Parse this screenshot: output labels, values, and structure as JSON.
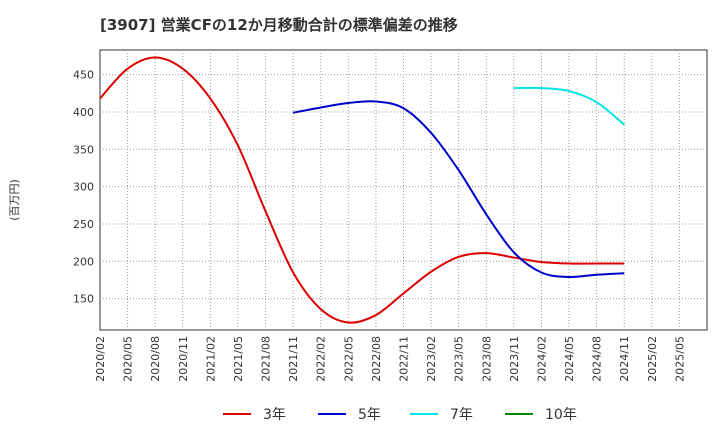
{
  "chart_data": {
    "type": "line",
    "title": "[3907]  営業CFの12か月移動合計の標準偏差の推移",
    "ylabel": "(百万円)",
    "xlabel": "",
    "ylim": [
      108,
      483
    ],
    "yticks": [
      150,
      200,
      250,
      300,
      350,
      400,
      450
    ],
    "x_ticks": [
      "2020/02",
      "2020/05",
      "2020/08",
      "2020/11",
      "2021/02",
      "2021/05",
      "2021/08",
      "2021/11",
      "2022/02",
      "2022/05",
      "2022/08",
      "2022/11",
      "2023/02",
      "2023/05",
      "2023/08",
      "2023/11",
      "2024/02",
      "2024/05",
      "2024/08",
      "2024/11",
      "2025/02",
      "2025/05"
    ],
    "grid": true,
    "legend_position": "bottom",
    "series": [
      {
        "name": "3年",
        "color": "#dd0000",
        "points": [
          [
            "2020/02",
            418
          ],
          [
            "2020/05",
            458
          ],
          [
            "2020/08",
            473
          ],
          [
            "2020/11",
            458
          ],
          [
            "2021/02",
            418
          ],
          [
            "2021/05",
            355
          ],
          [
            "2021/08",
            267
          ],
          [
            "2021/11",
            185
          ],
          [
            "2022/02",
            136
          ],
          [
            "2022/05",
            118
          ],
          [
            "2022/08",
            128
          ],
          [
            "2022/11",
            157
          ],
          [
            "2023/02",
            186
          ],
          [
            "2023/05",
            206
          ],
          [
            "2023/08",
            211
          ],
          [
            "2023/11",
            205
          ],
          [
            "2024/02",
            199
          ],
          [
            "2024/05",
            197
          ],
          [
            "2024/08",
            197
          ],
          [
            "2024/11",
            197
          ]
        ]
      },
      {
        "name": "5年",
        "color": "#0000cc",
        "points": [
          [
            "2021/11",
            399
          ],
          [
            "2022/02",
            406
          ],
          [
            "2022/05",
            412
          ],
          [
            "2022/08",
            414
          ],
          [
            "2022/11",
            405
          ],
          [
            "2023/02",
            372
          ],
          [
            "2023/05",
            322
          ],
          [
            "2023/08",
            263
          ],
          [
            "2023/11",
            212
          ],
          [
            "2024/02",
            185
          ],
          [
            "2024/05",
            179
          ],
          [
            "2024/08",
            182
          ],
          [
            "2024/11",
            184
          ]
        ]
      },
      {
        "name": "7年",
        "color": "#00e5e5",
        "points": [
          [
            "2023/11",
            432
          ],
          [
            "2024/02",
            432
          ],
          [
            "2024/05",
            428
          ],
          [
            "2024/08",
            413
          ],
          [
            "2024/11",
            383
          ]
        ]
      },
      {
        "name": "10年",
        "color": "#008800",
        "points": []
      }
    ]
  }
}
